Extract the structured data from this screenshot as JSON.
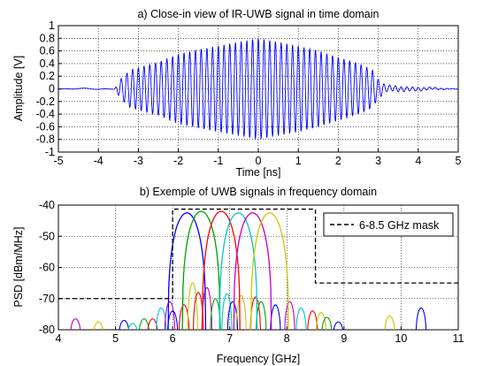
{
  "chart_data": [
    {
      "type": "line",
      "title": "a) Close-in view of IR-UWB signal in time domain",
      "xlabel": "Time [ns]",
      "ylabel": "Amplitude [V]",
      "xlim": [
        -5,
        5
      ],
      "ylim": [
        -1,
        1
      ],
      "xticks": [
        "-5",
        "-4",
        "-3",
        "-2",
        "-1",
        "0",
        "1",
        "2",
        "3",
        "4",
        "5"
      ],
      "yticks": [
        "-1",
        "-0.8",
        "-0.6",
        "-0.4",
        "-0.2",
        "0",
        "0.2",
        "0.4",
        "0.6",
        "0.8",
        "1"
      ],
      "grid": true,
      "series": [
        {
          "color": "#0000ff",
          "description_values": {
            "carrier_frequency_ghz": 7.0,
            "burst_start_ns": -3.5,
            "burst_end_ns": 3.0,
            "envelope": [
              [
                -5.0,
                0.0
              ],
              [
                -3.6,
                0.0
              ],
              [
                -3.45,
                0.15
              ],
              [
                -3.2,
                0.3
              ],
              [
                -2.5,
                0.42
              ],
              [
                -2.0,
                0.55
              ],
              [
                -1.5,
                0.62
              ],
              [
                -1.0,
                0.68
              ],
              [
                -0.5,
                0.74
              ],
              [
                0.0,
                0.8
              ],
              [
                0.5,
                0.74
              ],
              [
                1.0,
                0.68
              ],
              [
                1.5,
                0.6
              ],
              [
                2.0,
                0.5
              ],
              [
                2.5,
                0.4
              ],
              [
                2.85,
                0.3
              ],
              [
                3.0,
                0.15
              ],
              [
                3.2,
                0.05
              ],
              [
                5.0,
                0.0
              ]
            ]
          }
        }
      ]
    },
    {
      "type": "line",
      "title": "b) Exemple of UWB signals in frequency domain",
      "xlabel": "Frequency [GHz]",
      "ylabel": "PSD [dBm/MHz]",
      "xlim": [
        4,
        11
      ],
      "ylim": [
        -80,
        -40
      ],
      "xticks": [
        "4",
        "5",
        "6",
        "7",
        "8",
        "9",
        "10",
        "11"
      ],
      "yticks": [
        "-80",
        "-70",
        "-60",
        "-50",
        "-40"
      ],
      "grid": true,
      "legend": {
        "label": "6-8.5 GHz mask",
        "placement": "top-right"
      },
      "mask": [
        [
          4.0,
          -70
        ],
        [
          6.0,
          -70
        ],
        [
          6.0,
          -41.3
        ],
        [
          8.5,
          -41.3
        ],
        [
          8.5,
          -65
        ],
        [
          11.0,
          -65
        ]
      ],
      "series": [
        {
          "color": "#0000ff",
          "center_ghz": 6.25,
          "peak_dbm_per_mhz": -42.5
        },
        {
          "color": "#00a000",
          "center_ghz": 6.5,
          "peak_dbm_per_mhz": -42.0
        },
        {
          "color": "#ff0000",
          "center_ghz": 6.85,
          "peak_dbm_per_mhz": -42.0
        },
        {
          "color": "#00c8c8",
          "center_ghz": 7.15,
          "peak_dbm_per_mhz": -42.5
        },
        {
          "color": "#c000c0",
          "center_ghz": 7.4,
          "peak_dbm_per_mhz": -42.5
        },
        {
          "color": "#c8c800",
          "center_ghz": 7.7,
          "peak_dbm_per_mhz": -42.5
        }
      ],
      "side_lobes": [
        {
          "color": "#c000c0",
          "center_ghz": 4.3,
          "peak_dbm_per_mhz": -76.5
        },
        {
          "color": "#c8c800",
          "center_ghz": 4.7,
          "peak_dbm_per_mhz": -77.5
        },
        {
          "color": "#0000ff",
          "center_ghz": 5.15,
          "peak_dbm_per_mhz": -77.0
        },
        {
          "color": "#00a000",
          "center_ghz": 5.5,
          "peak_dbm_per_mhz": -76.5
        },
        {
          "color": "#ff0000",
          "center_ghz": 5.65,
          "peak_dbm_per_mhz": -76.5
        },
        {
          "color": "#00c8c8",
          "center_ghz": 5.3,
          "peak_dbm_per_mhz": -78.0
        },
        {
          "color": "#00c8c8",
          "center_ghz": 5.8,
          "peak_dbm_per_mhz": -73.0
        },
        {
          "color": "#c000c0",
          "center_ghz": 5.95,
          "peak_dbm_per_mhz": -71.0
        },
        {
          "color": "#0000ff",
          "center_ghz": 6.0,
          "peak_dbm_per_mhz": -74.0
        },
        {
          "color": "#ff0000",
          "center_ghz": 6.2,
          "peak_dbm_per_mhz": -72.0
        },
        {
          "color": "#c8c800",
          "center_ghz": 6.35,
          "peak_dbm_per_mhz": -65.0
        },
        {
          "color": "#ff0000",
          "center_ghz": 6.45,
          "peak_dbm_per_mhz": -68.0
        },
        {
          "color": "#c000c0",
          "center_ghz": 6.6,
          "peak_dbm_per_mhz": -66.5
        },
        {
          "color": "#00a000",
          "center_ghz": 6.75,
          "peak_dbm_per_mhz": -70.0
        },
        {
          "color": "#00c8c8",
          "center_ghz": 6.95,
          "peak_dbm_per_mhz": -68.5
        },
        {
          "color": "#0000ff",
          "center_ghz": 7.05,
          "peak_dbm_per_mhz": -71.0
        },
        {
          "color": "#c8c800",
          "center_ghz": 7.2,
          "peak_dbm_per_mhz": -69.0
        },
        {
          "color": "#ff0000",
          "center_ghz": 7.45,
          "peak_dbm_per_mhz": -69.5
        },
        {
          "color": "#00a000",
          "center_ghz": 7.55,
          "peak_dbm_per_mhz": -71.0
        },
        {
          "color": "#0000ff",
          "center_ghz": 7.8,
          "peak_dbm_per_mhz": -72.0
        },
        {
          "color": "#c000c0",
          "center_ghz": 8.05,
          "peak_dbm_per_mhz": -71.0
        },
        {
          "color": "#00c8c8",
          "center_ghz": 8.25,
          "peak_dbm_per_mhz": -73.0
        },
        {
          "color": "#ff0000",
          "center_ghz": 8.45,
          "peak_dbm_per_mhz": -74.0
        },
        {
          "color": "#c8c800",
          "center_ghz": 8.6,
          "peak_dbm_per_mhz": -74.5
        },
        {
          "color": "#00a000",
          "center_ghz": 8.7,
          "peak_dbm_per_mhz": -76.0
        },
        {
          "color": "#0000ff",
          "center_ghz": 8.9,
          "peak_dbm_per_mhz": -77.5
        },
        {
          "color": "#c8c800",
          "center_ghz": 9.8,
          "peak_dbm_per_mhz": -75.5
        },
        {
          "color": "#0000ff",
          "center_ghz": 10.35,
          "peak_dbm_per_mhz": -73.0
        }
      ]
    }
  ]
}
